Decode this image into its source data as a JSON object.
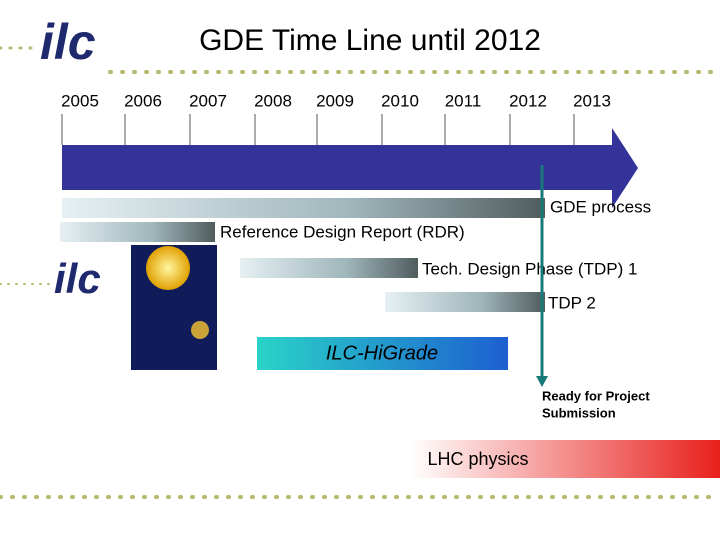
{
  "header": {
    "title": "GDE Time Line until 2012",
    "logo": "ilc"
  },
  "years": [
    "2005",
    "2006",
    "2007",
    "2008",
    "2009",
    "2010",
    "2011",
    "2012",
    "2013"
  ],
  "phases": [
    {
      "label": "GDE process"
    },
    {
      "label": "Reference Design Report (RDR)"
    },
    {
      "label": "Tech. Design Phase (TDP) 1"
    },
    {
      "label": "TDP 2"
    }
  ],
  "program": {
    "label": "ILC-HiGrade"
  },
  "milestone": {
    "lines": [
      "Ready for Project",
      "Submission"
    ]
  },
  "lhc": {
    "label": "LHC physics"
  }
}
